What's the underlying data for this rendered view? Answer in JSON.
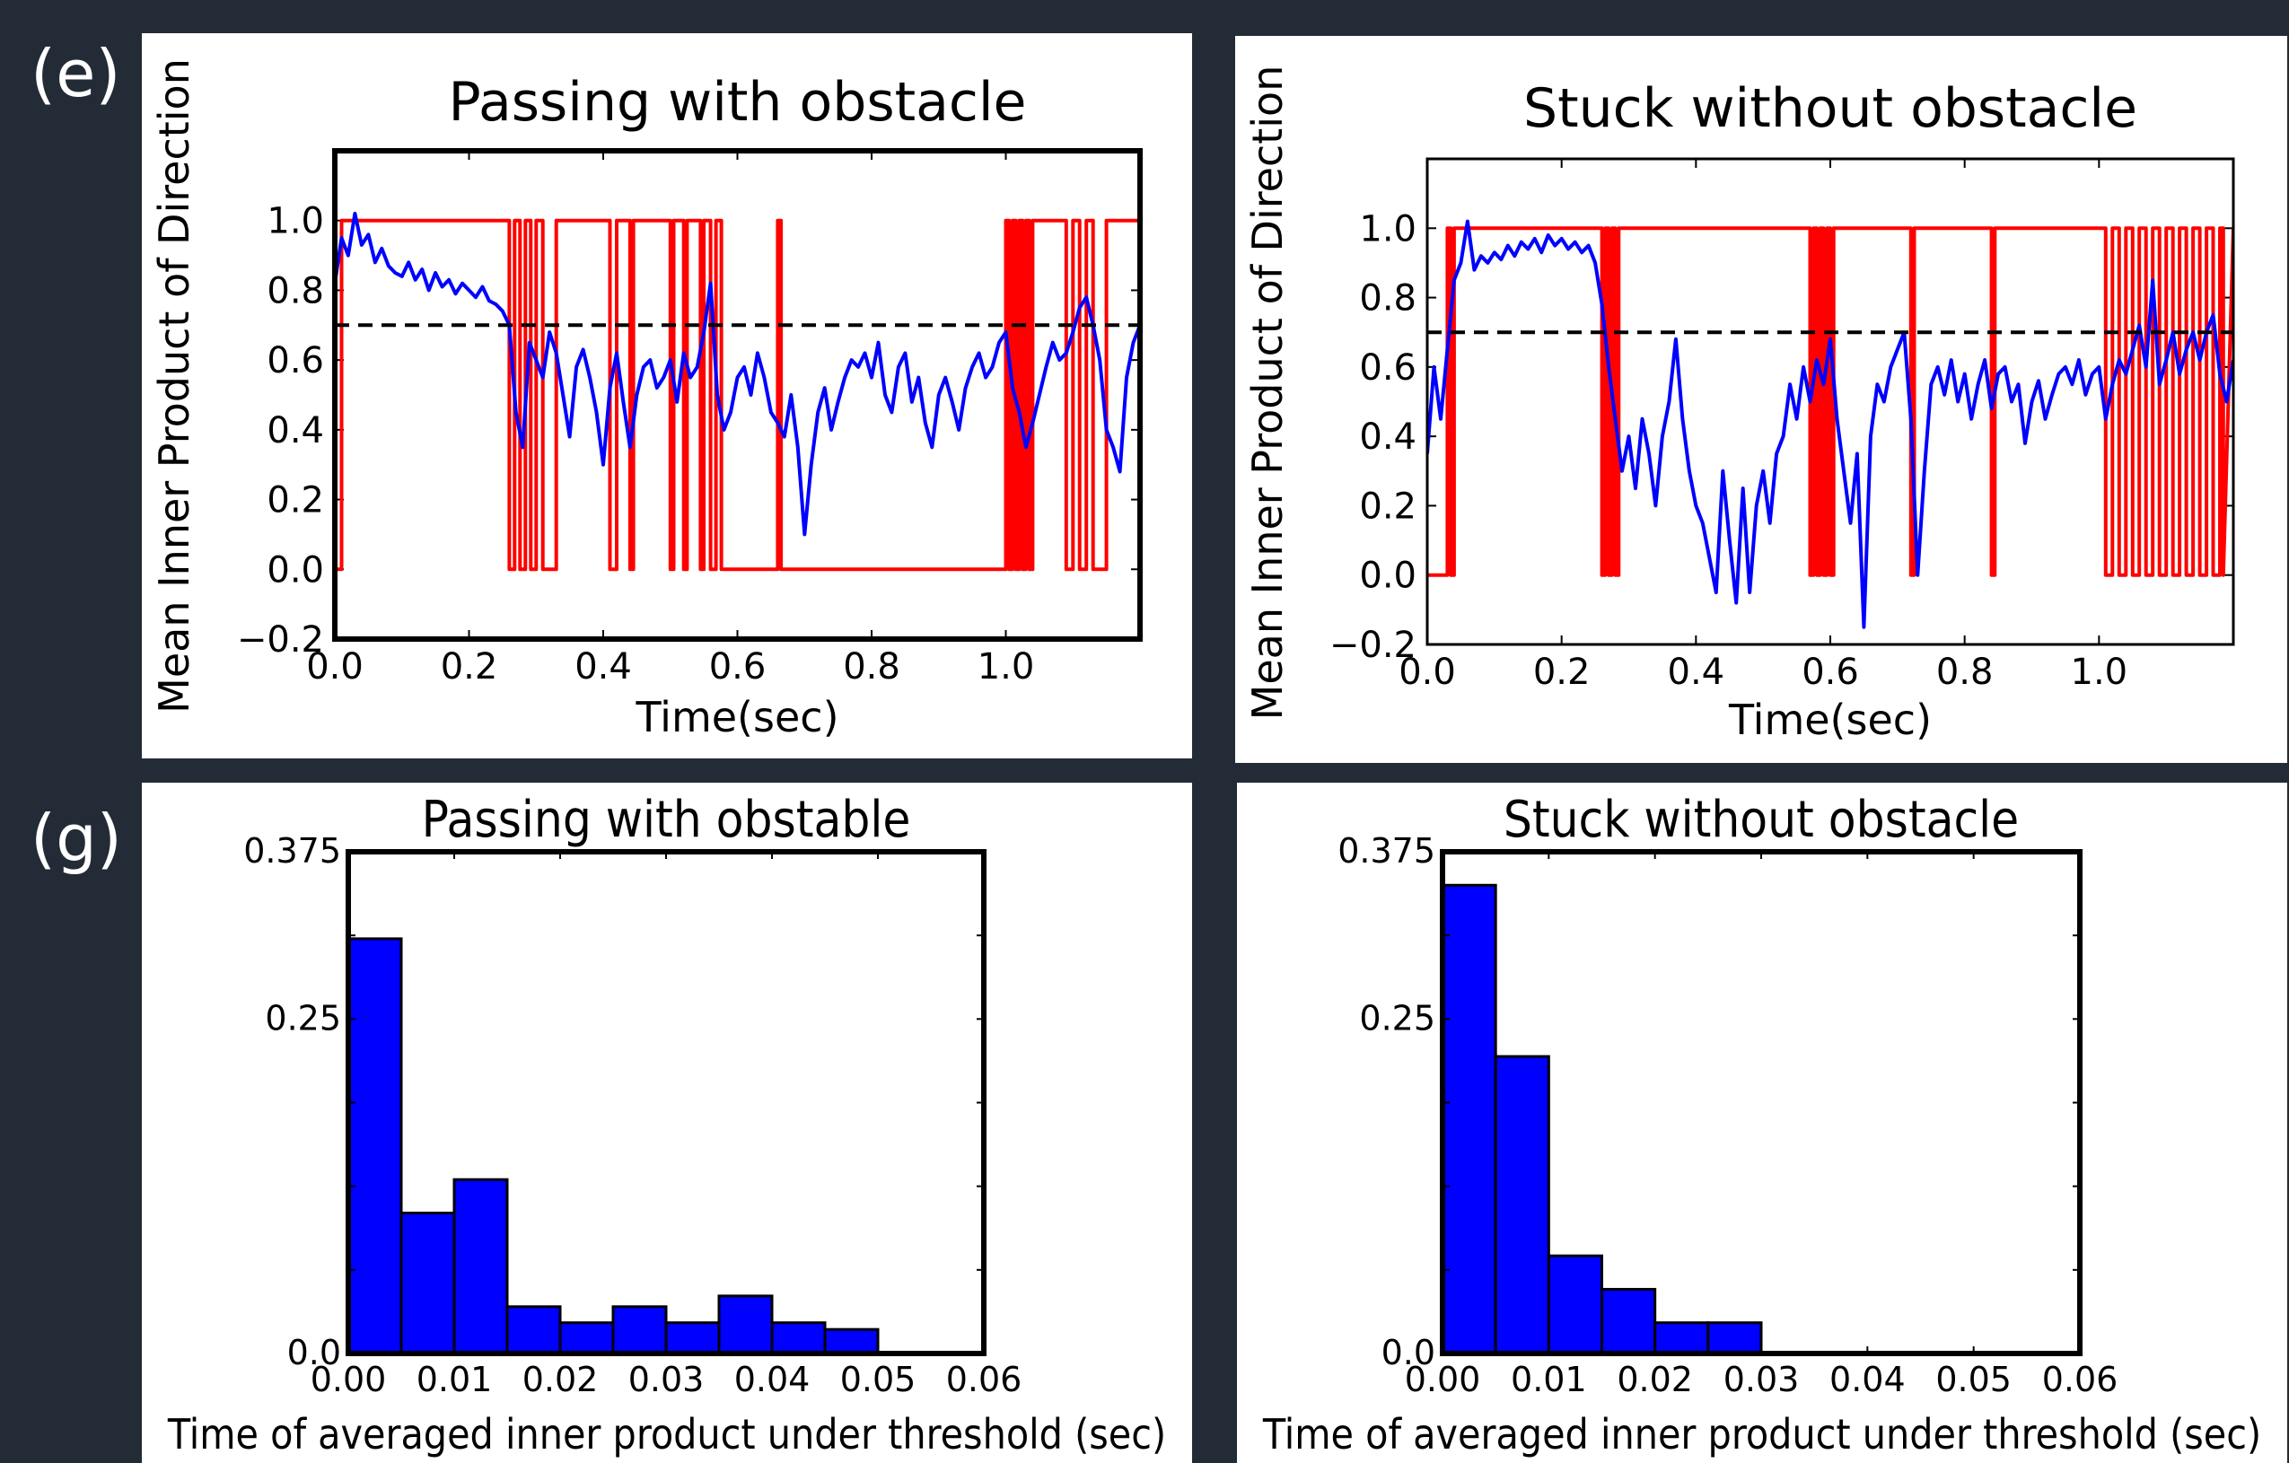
{
  "labels": {
    "e": "(e)",
    "g": "(g)"
  },
  "colors": {
    "background": "#232b36",
    "blue": "#0000ff",
    "red": "#ff0000",
    "bar": "#0000ff"
  },
  "chart_data": [
    {
      "type": "line",
      "title": "Passing with obstacle",
      "xlabel": "Time(sec)",
      "ylabel": "Mean Inner Product of Direction",
      "xlim": [
        0.0,
        1.2
      ],
      "ylim": [
        -0.2,
        1.2
      ],
      "xticks": [
        "0.0",
        "0.2",
        "0.4",
        "0.6",
        "0.8",
        "1.0"
      ],
      "yticks": [
        "−0.2",
        "0.0",
        "0.2",
        "0.4",
        "0.6",
        "0.8",
        "1.0"
      ],
      "threshold": 0.7,
      "series": [
        {
          "color": "blue",
          "x": [
            0.0,
            0.01,
            0.02,
            0.03,
            0.04,
            0.05,
            0.06,
            0.07,
            0.08,
            0.09,
            0.1,
            0.11,
            0.12,
            0.13,
            0.14,
            0.15,
            0.16,
            0.17,
            0.18,
            0.19,
            0.2,
            0.21,
            0.22,
            0.23,
            0.24,
            0.25,
            0.26,
            0.27,
            0.28,
            0.29,
            0.3,
            0.31,
            0.32,
            0.33,
            0.34,
            0.35,
            0.36,
            0.37,
            0.38,
            0.39,
            0.4,
            0.41,
            0.42,
            0.43,
            0.44,
            0.45,
            0.46,
            0.47,
            0.48,
            0.49,
            0.5,
            0.51,
            0.52,
            0.53,
            0.54,
            0.55,
            0.56,
            0.57,
            0.58,
            0.59,
            0.6,
            0.61,
            0.62,
            0.63,
            0.64,
            0.65,
            0.66,
            0.67,
            0.68,
            0.69,
            0.7,
            0.71,
            0.72,
            0.73,
            0.74,
            0.75,
            0.76,
            0.77,
            0.78,
            0.79,
            0.8,
            0.81,
            0.82,
            0.83,
            0.84,
            0.85,
            0.86,
            0.87,
            0.88,
            0.89,
            0.9,
            0.91,
            0.92,
            0.93,
            0.94,
            0.95,
            0.96,
            0.97,
            0.98,
            0.99,
            1.0,
            1.01,
            1.02,
            1.03,
            1.04,
            1.05,
            1.06,
            1.07,
            1.08,
            1.09,
            1.1,
            1.11,
            1.12,
            1.13,
            1.14,
            1.15,
            1.16,
            1.17,
            1.18,
            1.19,
            1.2
          ],
          "y": [
            0.82,
            0.95,
            0.9,
            1.02,
            0.93,
            0.96,
            0.88,
            0.92,
            0.87,
            0.85,
            0.84,
            0.88,
            0.83,
            0.86,
            0.8,
            0.85,
            0.81,
            0.83,
            0.79,
            0.82,
            0.8,
            0.78,
            0.81,
            0.77,
            0.76,
            0.74,
            0.7,
            0.45,
            0.35,
            0.65,
            0.6,
            0.55,
            0.68,
            0.62,
            0.5,
            0.38,
            0.58,
            0.63,
            0.55,
            0.45,
            0.3,
            0.52,
            0.62,
            0.48,
            0.35,
            0.5,
            0.58,
            0.6,
            0.52,
            0.55,
            0.6,
            0.48,
            0.62,
            0.55,
            0.58,
            0.68,
            0.82,
            0.5,
            0.4,
            0.45,
            0.55,
            0.58,
            0.5,
            0.62,
            0.55,
            0.45,
            0.42,
            0.38,
            0.5,
            0.35,
            0.1,
            0.3,
            0.45,
            0.52,
            0.4,
            0.48,
            0.55,
            0.6,
            0.58,
            0.62,
            0.55,
            0.65,
            0.5,
            0.45,
            0.58,
            0.62,
            0.48,
            0.55,
            0.42,
            0.35,
            0.5,
            0.55,
            0.48,
            0.4,
            0.52,
            0.58,
            0.62,
            0.55,
            0.58,
            0.65,
            0.68,
            0.52,
            0.45,
            0.35,
            0.42,
            0.5,
            0.58,
            0.65,
            0.6,
            0.62,
            0.68,
            0.75,
            0.78,
            0.7,
            0.6,
            0.4,
            0.35,
            0.28,
            0.55,
            0.65,
            0.7
          ]
        },
        {
          "color": "red",
          "x": [
            0.0,
            0.01,
            0.01,
            0.26,
            0.26,
            0.268,
            0.268,
            0.276,
            0.276,
            0.284,
            0.284,
            0.292,
            0.292,
            0.3,
            0.3,
            0.31,
            0.31,
            0.33,
            0.33,
            0.41,
            0.41,
            0.42,
            0.42,
            0.44,
            0.44,
            0.445,
            0.445,
            0.5,
            0.5,
            0.505,
            0.505,
            0.52,
            0.52,
            0.525,
            0.525,
            0.545,
            0.545,
            0.55,
            0.55,
            0.56,
            0.56,
            0.568,
            0.568,
            0.576,
            0.576,
            0.66,
            0.66,
            0.665,
            0.665,
            1.0,
            1.0,
            1.005,
            1.005,
            1.01,
            1.01,
            1.015,
            1.015,
            1.02,
            1.02,
            1.025,
            1.025,
            1.03,
            1.03,
            1.035,
            1.035,
            1.04,
            1.04,
            1.09,
            1.09,
            1.1,
            1.1,
            1.11,
            1.11,
            1.12,
            1.12,
            1.13,
            1.13,
            1.15,
            1.15,
            1.2
          ],
          "y": [
            0,
            0,
            1,
            1,
            0,
            0,
            1,
            1,
            0,
            0,
            1,
            1,
            0,
            0,
            1,
            1,
            0,
            0,
            1,
            1,
            0,
            0,
            1,
            1,
            0,
            0,
            1,
            1,
            0,
            0,
            1,
            1,
            0,
            0,
            1,
            1,
            0,
            0,
            1,
            1,
            0,
            0,
            1,
            1,
            0,
            0,
            1,
            1,
            0,
            0,
            1,
            1,
            0,
            0,
            1,
            1,
            0,
            0,
            1,
            1,
            0,
            0,
            1,
            1,
            0,
            0,
            1,
            1,
            0,
            0,
            1,
            1,
            0,
            0,
            1,
            1,
            0,
            0,
            1,
            1
          ]
        }
      ]
    },
    {
      "type": "line",
      "title": "Stuck without obstacle",
      "xlabel": "Time(sec)",
      "ylabel": "Mean Inner Product of Direction",
      "xlim": [
        0.0,
        1.2
      ],
      "ylim": [
        -0.2,
        1.2
      ],
      "xticks": [
        "0.0",
        "0.2",
        "0.4",
        "0.6",
        "0.8",
        "1.0"
      ],
      "yticks": [
        "−0.2",
        "0.0",
        "0.2",
        "0.4",
        "0.6",
        "0.8",
        "1.0"
      ],
      "threshold": 0.7,
      "series": [
        {
          "color": "blue",
          "x": [
            0.0,
            0.01,
            0.02,
            0.03,
            0.04,
            0.05,
            0.06,
            0.07,
            0.08,
            0.09,
            0.1,
            0.11,
            0.12,
            0.13,
            0.14,
            0.15,
            0.16,
            0.17,
            0.18,
            0.19,
            0.2,
            0.21,
            0.22,
            0.23,
            0.24,
            0.25,
            0.26,
            0.27,
            0.28,
            0.29,
            0.3,
            0.31,
            0.32,
            0.33,
            0.34,
            0.35,
            0.36,
            0.37,
            0.38,
            0.39,
            0.4,
            0.41,
            0.42,
            0.43,
            0.44,
            0.45,
            0.46,
            0.47,
            0.48,
            0.49,
            0.5,
            0.51,
            0.52,
            0.53,
            0.54,
            0.55,
            0.56,
            0.57,
            0.58,
            0.59,
            0.6,
            0.61,
            0.62,
            0.63,
            0.64,
            0.65,
            0.66,
            0.67,
            0.68,
            0.69,
            0.7,
            0.71,
            0.72,
            0.73,
            0.74,
            0.75,
            0.76,
            0.77,
            0.78,
            0.79,
            0.8,
            0.81,
            0.82,
            0.83,
            0.84,
            0.85,
            0.86,
            0.87,
            0.88,
            0.89,
            0.9,
            0.91,
            0.92,
            0.93,
            0.94,
            0.95,
            0.96,
            0.97,
            0.98,
            0.99,
            1.0,
            1.01,
            1.02,
            1.03,
            1.04,
            1.05,
            1.06,
            1.07,
            1.08,
            1.09,
            1.1,
            1.11,
            1.12,
            1.13,
            1.14,
            1.15,
            1.16,
            1.17,
            1.18,
            1.19,
            1.2
          ],
          "y": [
            0.35,
            0.6,
            0.45,
            0.65,
            0.85,
            0.9,
            1.02,
            0.88,
            0.92,
            0.9,
            0.93,
            0.91,
            0.95,
            0.92,
            0.96,
            0.94,
            0.97,
            0.93,
            0.98,
            0.95,
            0.97,
            0.94,
            0.96,
            0.93,
            0.95,
            0.9,
            0.78,
            0.6,
            0.45,
            0.3,
            0.4,
            0.25,
            0.45,
            0.35,
            0.2,
            0.4,
            0.5,
            0.68,
            0.45,
            0.3,
            0.2,
            0.15,
            0.05,
            -0.05,
            0.3,
            0.1,
            -0.08,
            0.25,
            -0.05,
            0.2,
            0.3,
            0.15,
            0.35,
            0.4,
            0.55,
            0.45,
            0.6,
            0.5,
            0.62,
            0.55,
            0.68,
            0.45,
            0.3,
            0.15,
            0.35,
            -0.15,
            0.4,
            0.55,
            0.5,
            0.6,
            0.65,
            0.7,
            0.45,
            0.0,
            0.3,
            0.55,
            0.6,
            0.52,
            0.62,
            0.5,
            0.58,
            0.45,
            0.55,
            0.62,
            0.48,
            0.58,
            0.6,
            0.5,
            0.55,
            0.38,
            0.5,
            0.56,
            0.45,
            0.52,
            0.58,
            0.6,
            0.55,
            0.62,
            0.52,
            0.58,
            0.6,
            0.45,
            0.55,
            0.62,
            0.58,
            0.65,
            0.72,
            0.6,
            0.85,
            0.55,
            0.62,
            0.7,
            0.58,
            0.65,
            0.7,
            0.62,
            0.7,
            0.75,
            0.58,
            0.5,
            0.62
          ]
        },
        {
          "color": "red",
          "x": [
            0.0,
            0.03,
            0.03,
            0.035,
            0.035,
            0.04,
            0.04,
            0.26,
            0.26,
            0.265,
            0.265,
            0.27,
            0.27,
            0.275,
            0.275,
            0.28,
            0.28,
            0.285,
            0.285,
            0.57,
            0.57,
            0.575,
            0.575,
            0.58,
            0.58,
            0.585,
            0.585,
            0.59,
            0.59,
            0.595,
            0.595,
            0.6,
            0.6,
            0.605,
            0.605,
            0.72,
            0.72,
            0.725,
            0.725,
            0.84,
            0.84,
            0.845,
            0.845,
            1.01,
            1.01,
            1.02,
            1.02,
            1.03,
            1.03,
            1.04,
            1.04,
            1.05,
            1.05,
            1.06,
            1.06,
            1.07,
            1.07,
            1.08,
            1.08,
            1.09,
            1.09,
            1.1,
            1.1,
            1.11,
            1.11,
            1.12,
            1.12,
            1.13,
            1.13,
            1.14,
            1.14,
            1.15,
            1.15,
            1.16,
            1.16,
            1.17,
            1.17,
            1.18,
            1.18,
            1.185,
            1.185,
            1.2
          ],
          "y": [
            0,
            0,
            1,
            1,
            0,
            0,
            1,
            1,
            0,
            0,
            1,
            1,
            0,
            0,
            1,
            1,
            0,
            0,
            1,
            1,
            0,
            0,
            1,
            1,
            0,
            0,
            1,
            1,
            0,
            0,
            1,
            1,
            0,
            0,
            1,
            1,
            0,
            0,
            1,
            1,
            0,
            0,
            1,
            1,
            0,
            0,
            1,
            1,
            0,
            0,
            1,
            1,
            0,
            0,
            1,
            1,
            0,
            0,
            1,
            1,
            0,
            0,
            1,
            1,
            0,
            0,
            1,
            1,
            0,
            0,
            1,
            1,
            0,
            0,
            1,
            1,
            0,
            0,
            1,
            1,
            0,
            1
          ]
        }
      ]
    },
    {
      "type": "bar",
      "title": "Passing with obstable",
      "xlabel": "Time of averaged inner product under threshold (sec)",
      "ylabel": "",
      "xlim": [
        0.0,
        0.06
      ],
      "ylim": [
        0.0,
        0.375
      ],
      "xticks": [
        "0.00",
        "0.01",
        "0.02",
        "0.03",
        "0.04",
        "0.05",
        "0.06"
      ],
      "yticks": [
        "0.0",
        "0.25",
        "0.375"
      ],
      "bin_width": 0.005,
      "bins": [
        0.0,
        0.005,
        0.01,
        0.015,
        0.02,
        0.025,
        0.03,
        0.035,
        0.04,
        0.045
      ],
      "values": [
        0.31,
        0.105,
        0.13,
        0.035,
        0.023,
        0.035,
        0.023,
        0.043,
        0.023,
        0.018
      ]
    },
    {
      "type": "bar",
      "title": "Stuck without obstacle",
      "xlabel": "Time of averaged inner product under threshold (sec)",
      "ylabel": "",
      "xlim": [
        0.0,
        0.06
      ],
      "ylim": [
        0.0,
        0.375
      ],
      "xticks": [
        "0.00",
        "0.01",
        "0.02",
        "0.03",
        "0.04",
        "0.05",
        "0.06"
      ],
      "yticks": [
        "0.0",
        "0.25",
        "0.375"
      ],
      "bin_width": 0.005,
      "bins": [
        0.0,
        0.005,
        0.01,
        0.015,
        0.02,
        0.025
      ],
      "values": [
        0.35,
        0.222,
        0.073,
        0.048,
        0.023,
        0.023
      ]
    }
  ]
}
